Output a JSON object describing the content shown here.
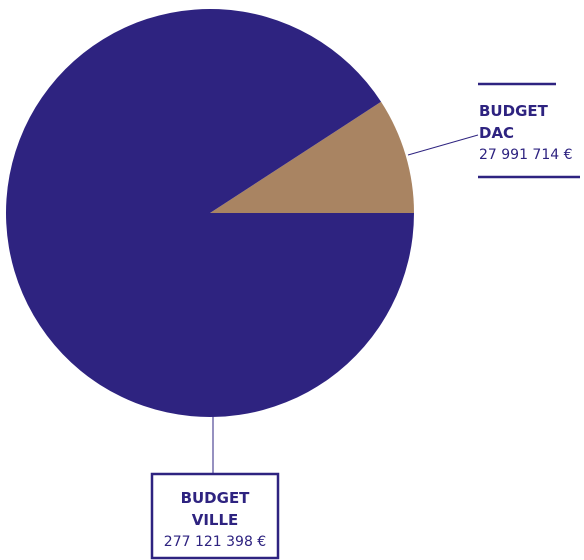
{
  "chart_data": {
    "type": "pie",
    "slices": [
      {
        "label_line1": "BUDGET",
        "label_line2": "DAC",
        "value": 27991714,
        "value_text": "27 991 714 €",
        "color": "#a98462"
      },
      {
        "label_line1": "BUDGET",
        "label_line2": "VILLE",
        "value": 277121398,
        "value_text": "277 121 398 €",
        "color": "#2e2380"
      }
    ],
    "label_color": "#2e2380",
    "legend": false
  }
}
